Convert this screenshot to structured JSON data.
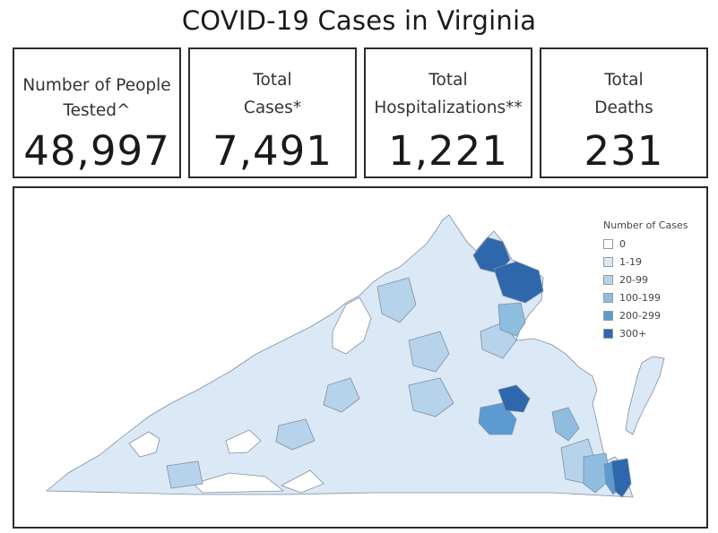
{
  "title": "COVID-19 Cases in Virginia",
  "cards": [
    {
      "label_line1": "Number of People",
      "label_line2": "Tested^",
      "value": "48,997"
    },
    {
      "label_line1": "Total",
      "label_line2": "Cases*",
      "value": "7,491"
    },
    {
      "label_line1": "Total",
      "label_line2": "Hospitalizations**",
      "value": "1,221"
    },
    {
      "label_line1": "Total",
      "label_line2": "Deaths",
      "value": "231"
    }
  ],
  "legend": {
    "title": "Number of Cases",
    "items": [
      {
        "label": "0",
        "color": "#ffffff"
      },
      {
        "label": "1-19",
        "color": "#dbe8f5"
      },
      {
        "label": "20-99",
        "color": "#b7d3eb"
      },
      {
        "label": "100-199",
        "color": "#8fbde0"
      },
      {
        "label": "200-299",
        "color": "#5c9bd0"
      },
      {
        "label": "300+",
        "color": "#2f67ad"
      }
    ]
  }
}
